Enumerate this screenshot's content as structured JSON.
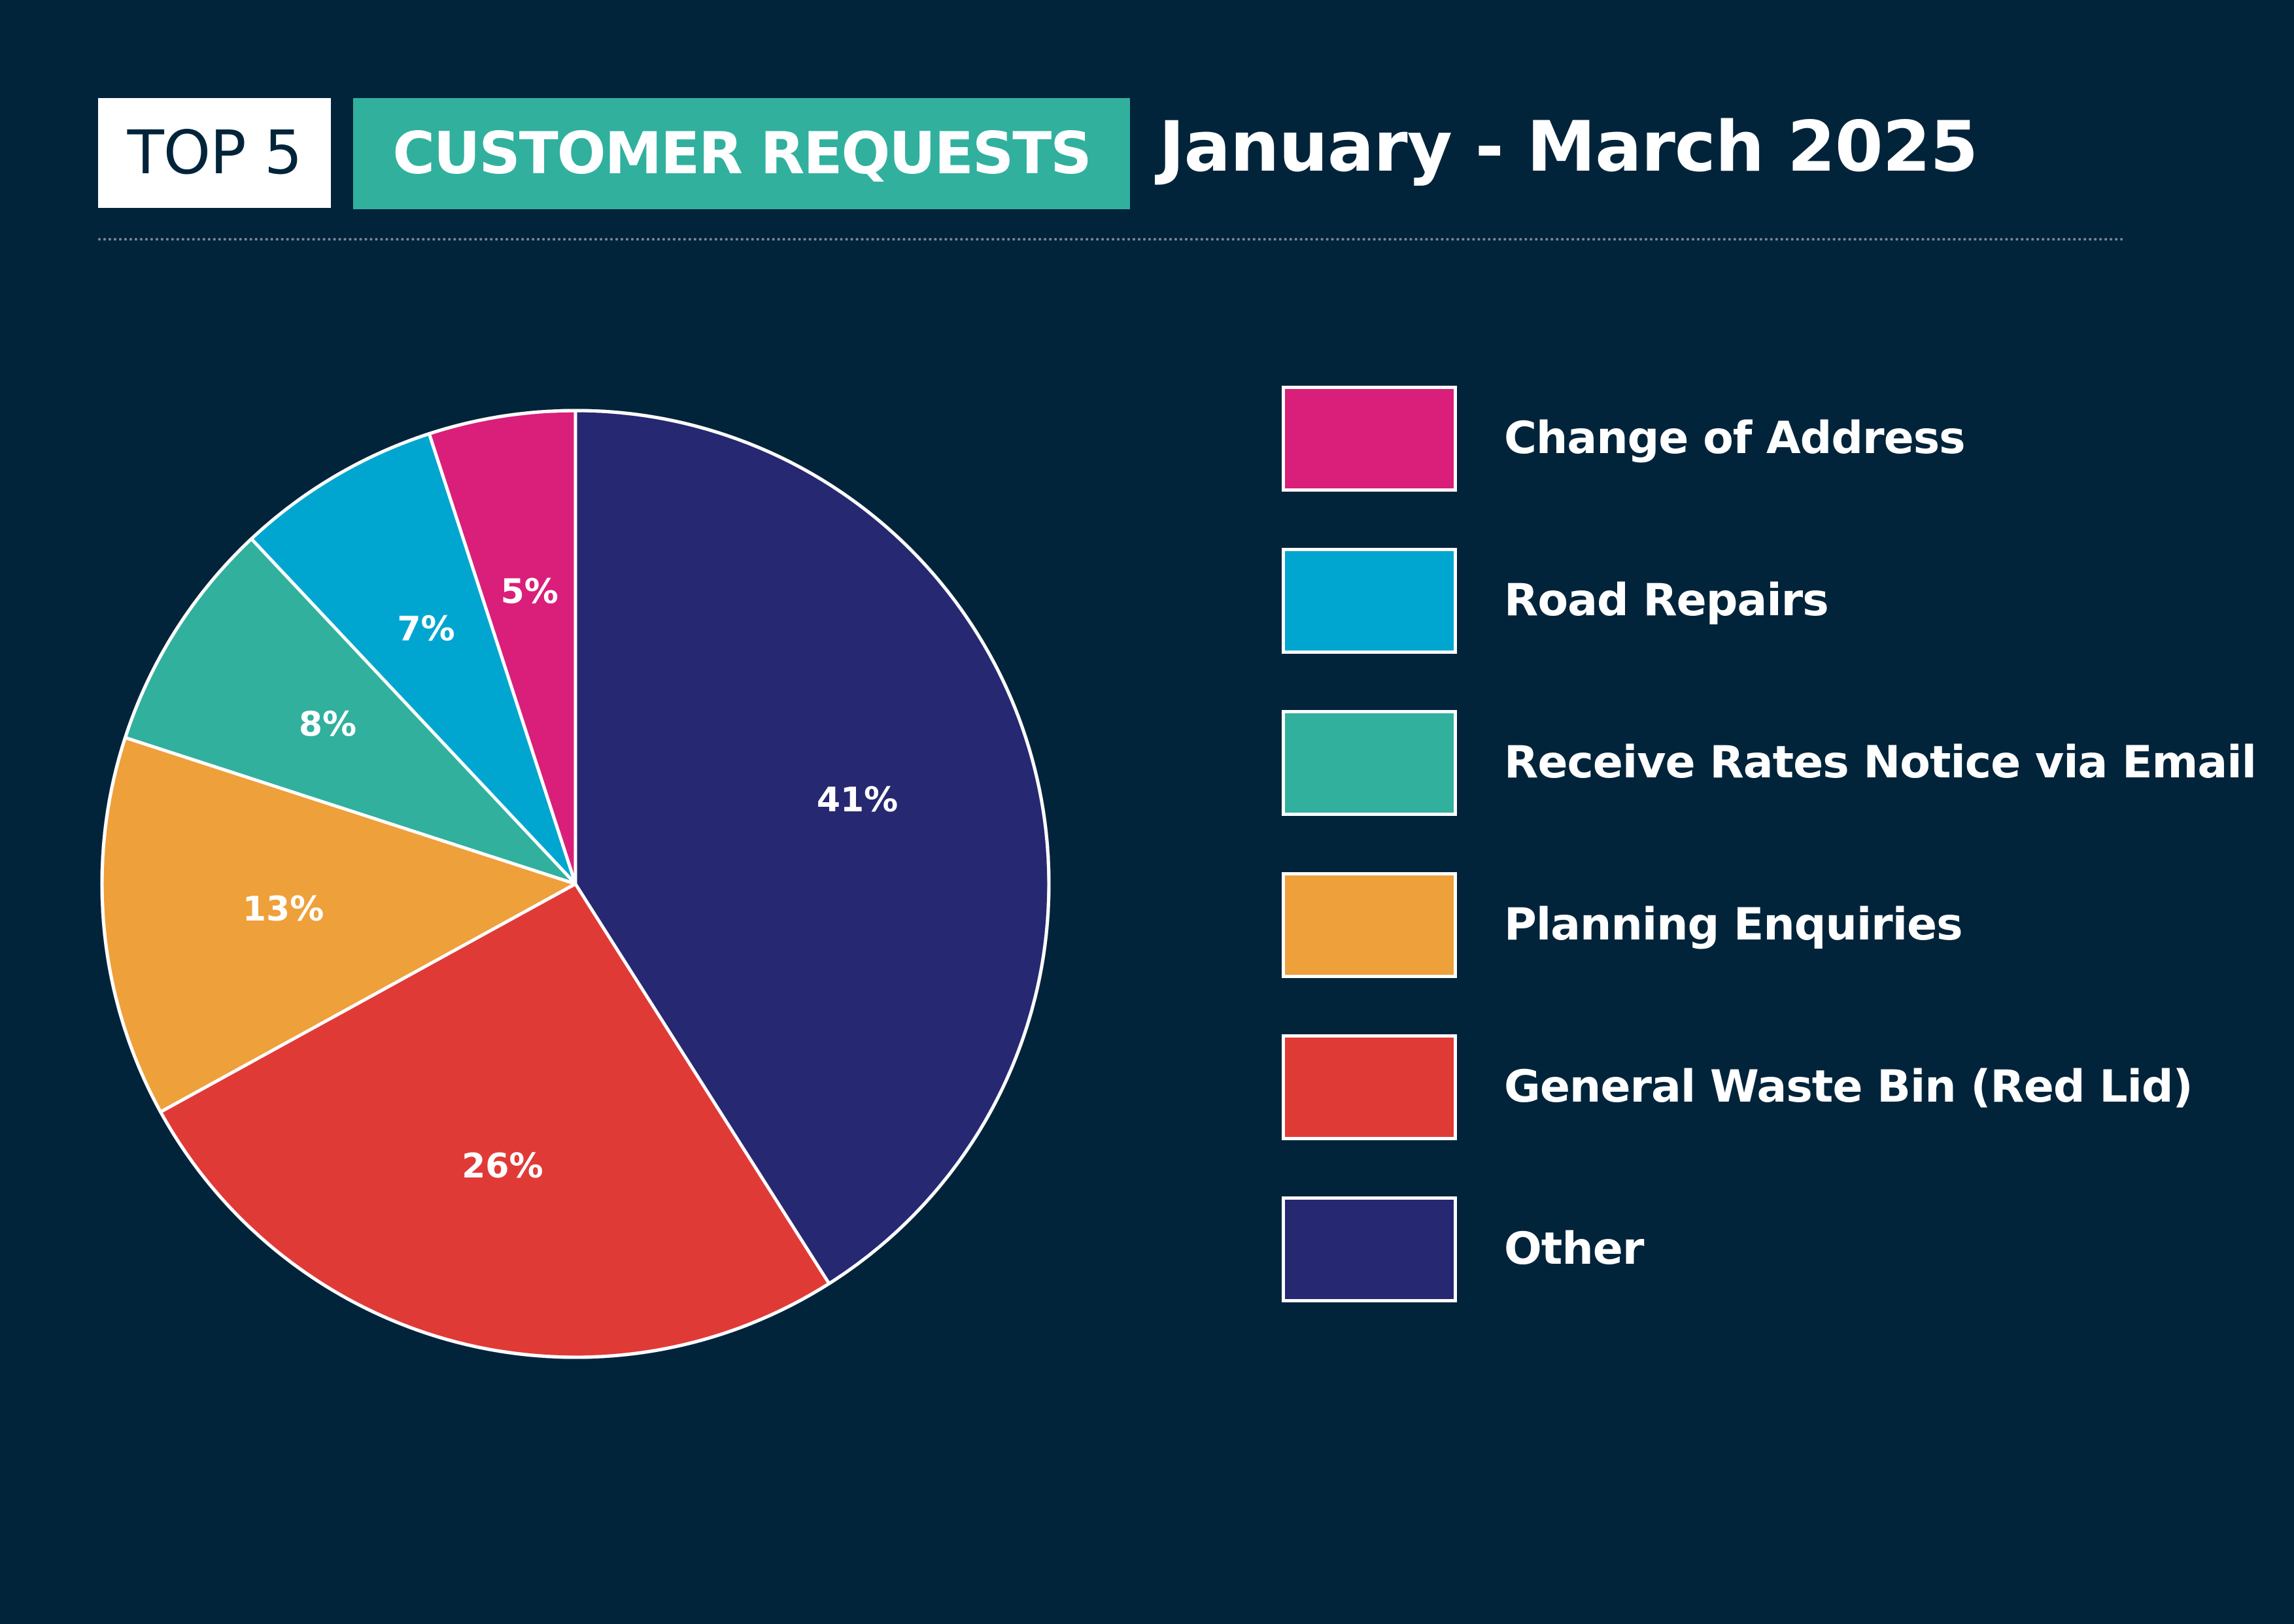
{
  "header": {
    "badge": "TOP 5",
    "title": "CUSTOMER REQUESTS",
    "period": "January - March 2025"
  },
  "colors": {
    "background": "#02243b",
    "badge_accent": "#31b09e",
    "slice_outline": "#ffffff"
  },
  "chart_data": {
    "type": "pie",
    "title": "CUSTOMER REQUESTS",
    "unit": "%",
    "start_angle_deg": 0,
    "direction": "counterclockwise",
    "slices": [
      {
        "label": "Change of Address",
        "value": 5,
        "display": "5%",
        "color": "#d91f7a"
      },
      {
        "label": "Road Repairs",
        "value": 7,
        "display": "7%",
        "color": "#00a6cf"
      },
      {
        "label": "Receive Rates Notice via Email",
        "value": 8,
        "display": "8%",
        "color": "#31b09e"
      },
      {
        "label": "Planning Enquiries",
        "value": 13,
        "display": "13%",
        "color": "#eea03a"
      },
      {
        "label": "General Waste Bin (Red Lid)",
        "value": 26,
        "display": "26%",
        "color": "#e03a37"
      },
      {
        "label": "Other",
        "value": 41,
        "display": "41%",
        "color": "#262872"
      }
    ],
    "legend_position": "right"
  }
}
